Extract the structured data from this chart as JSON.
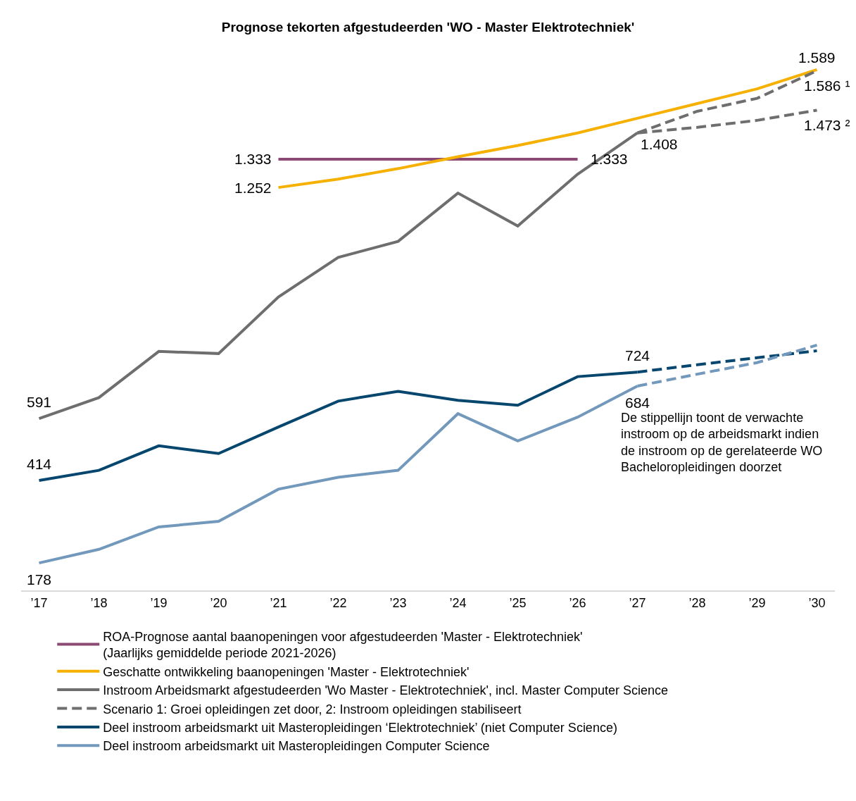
{
  "chart_data": {
    "type": "line",
    "title": "Prognose tekorten afgestudeerden 'WO - Master Elektrotechniek'",
    "categories": [
      "’17",
      "’18",
      "’19",
      "’20",
      "’21",
      "’22",
      "’23",
      "’24",
      "’25",
      "’26",
      "’27",
      "’28",
      "’29",
      "’30"
    ],
    "tick_labels": "x",
    "legend": "bottom",
    "marker": "none",
    "series": [
      {
        "name": "ROA-Prognose aantal baanopeningen voor afgestudeerden 'Master - Elektrotechniek'\n(Jaarlijks gemiddelde periode 2021-2026)",
        "color": "#8b4a73",
        "line_style": "solid",
        "values": [
          null,
          null,
          null,
          null,
          1333,
          1333,
          1333,
          1333,
          1333,
          1333,
          null,
          null,
          null,
          null
        ],
        "value_labels": [
          null,
          null,
          null,
          null,
          "1.333",
          null,
          null,
          null,
          null,
          "1.333",
          null,
          null,
          null,
          null
        ]
      },
      {
        "name": "Geschatte ontwikkeling baanopeningen 'Master - Elektrotechniek'",
        "color": "#f5b000",
        "line_style": "solid",
        "values": [
          null,
          null,
          null,
          null,
          1252,
          1276,
          1306,
          1340,
          1372,
          1408,
          1450,
          1492,
          1534,
          1589
        ],
        "value_labels": [
          null,
          null,
          null,
          null,
          "1.252",
          null,
          null,
          null,
          null,
          null,
          null,
          null,
          null,
          "1.589"
        ]
      },
      {
        "name": "Instroom Arbeidsmarkt afgestudeerden 'Wo Master - Elektrotechniek', incl. Master Computer Science",
        "color": "#6e6e6e",
        "line_style": "solid",
        "values": [
          591,
          651,
          783,
          777,
          939,
          1052,
          1098,
          1236,
          1142,
          1290,
          1408,
          null,
          null,
          null
        ],
        "value_labels": [
          "591",
          null,
          null,
          null,
          null,
          null,
          null,
          null,
          null,
          null,
          "1.408",
          null,
          null,
          null
        ]
      },
      {
        "name": "Scenario 1: Groei opleidingen zet door, 2: Instroom opleidingen stabiliseert",
        "color": "#6e6e6e",
        "line_style": "dashed",
        "values": [
          null,
          null,
          null,
          null,
          null,
          null,
          null,
          null,
          null,
          null,
          1408,
          1470,
          1507,
          1586
        ],
        "value_labels": [
          null,
          null,
          null,
          null,
          null,
          null,
          null,
          null,
          null,
          null,
          null,
          null,
          null,
          "1.586 ¹"
        ]
      },
      {
        "color": "#6e6e6e",
        "line_style": "dashed",
        "values": [
          null,
          null,
          null,
          null,
          null,
          null,
          null,
          null,
          null,
          null,
          1408,
          1424,
          1444,
          1473
        ],
        "value_labels": [
          null,
          null,
          null,
          null,
          null,
          null,
          null,
          null,
          null,
          null,
          null,
          null,
          null,
          "1.473 ²"
        ]
      },
      {
        "name": "Deel instroom arbeidsmarkt uit Masteropleidingen ‘Elektrotechniek’ (niet Computer Science)",
        "color": "#05466e",
        "line_style": "solid",
        "values": [
          414,
          443,
          513,
          491,
          567,
          641,
          669,
          643,
          629,
          711,
          724,
          null,
          null,
          null
        ],
        "value_labels": [
          "414",
          null,
          null,
          null,
          null,
          null,
          null,
          null,
          null,
          null,
          "724",
          null,
          null,
          null
        ]
      },
      {
        "name": "Deel instroom arbeidsmarkt uit Masteropleidingen Computer Science",
        "color": "#7298bc",
        "line_style": "solid",
        "values": [
          178,
          217,
          281,
          297,
          389,
          423,
          443,
          605,
          527,
          595,
          684,
          null,
          null,
          null
        ],
        "value_labels": [
          "178",
          null,
          null,
          null,
          null,
          null,
          null,
          null,
          null,
          null,
          "684",
          null,
          null,
          null
        ]
      },
      {
        "color": "#05466e",
        "line_style": "dashed",
        "values": [
          null,
          null,
          null,
          null,
          null,
          null,
          null,
          null,
          null,
          null,
          724,
          745,
          765,
          785
        ]
      },
      {
        "color": "#7298bc",
        "line_style": "dashed",
        "values": [
          null,
          null,
          null,
          null,
          null,
          null,
          null,
          null,
          null,
          null,
          684,
          718,
          751,
          801
        ]
      }
    ],
    "annotations": [
      "De stippellijn toont de verwachte\ninstroom op de arbeidsmarkt indien\nde instroom op de gerelateerde WO\nBacheloropleidingen doorzet"
    ]
  }
}
